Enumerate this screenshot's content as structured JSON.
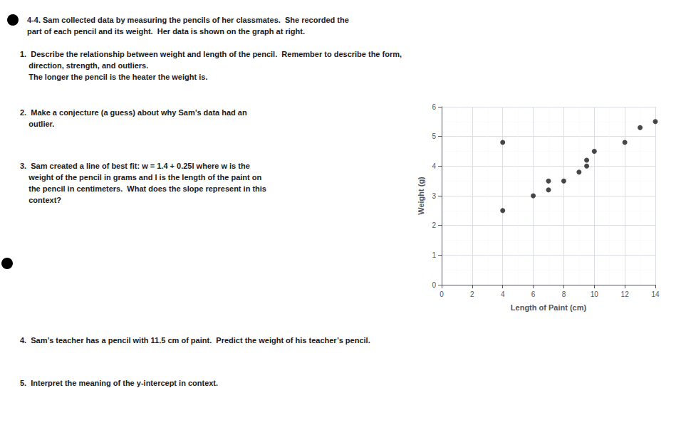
{
  "chart_data": {
    "type": "scatter",
    "annotations": [
      "4-4. Sam collected data by measuring the pencils of her classmates.  She recorded the\npart of each pencil and its weight.  Her data is shown on the graph at right.",
      "1.  Describe the relationship between weight and length of the pencil.  Remember to describe the form,\n    direction, strength, and outliers.\n    The longer the pencil is the heater the weight is.",
      "2.  Make a conjecture (a guess) about why Sam’s data had an\n    outlier.",
      "3.  Sam created a line of best fit: w = 1.4 + 0.25l where w is the\n    weight of the pencil in grams and l is the length of the paint on\n    the pencil in centimeters.  What does the slope represent in this\n    context?",
      "4.  Sam’s teacher has a pencil with 11.5 cm of paint.  Predict the weight of his teacher’s pencil.",
      "5.  Interpret the meaning of the y-intercept in context."
    ],
    "xlabel": "Length of Paint (cm)",
    "ylabel": "Weight (g)",
    "x": [
      4,
      4,
      6,
      7,
      7,
      8,
      9,
      9.5,
      9.5,
      10,
      12,
      13,
      14
    ],
    "values": [
      4.8,
      2.5,
      3.0,
      3.2,
      3.5,
      3.5,
      3.8,
      4.0,
      4.2,
      4.5,
      4.8,
      5.3,
      5.5
    ],
    "color": "#1a1a1a",
    "xlim": [
      0,
      14
    ],
    "ylim": [
      0,
      6
    ],
    "xticks": [
      0,
      2,
      4,
      6,
      8,
      10,
      12,
      14
    ],
    "yticks": [
      0,
      1,
      2,
      3,
      4,
      5,
      6
    ],
    "grid": true
  }
}
